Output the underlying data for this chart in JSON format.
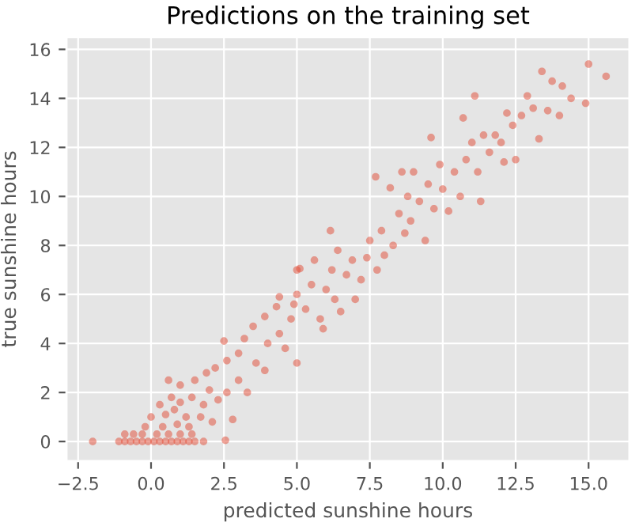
{
  "chart_data": {
    "type": "scatter",
    "title": "Predictions on the training set",
    "xlabel": "predicted sunshine hours",
    "ylabel": "true sunshine hours",
    "series": [
      {
        "color": "#e24a33",
        "x": [
          -2.0,
          -1.1,
          -0.9,
          -0.7,
          -0.5,
          -0.3,
          -0.1,
          0.1,
          0.3,
          0.5,
          0.7,
          0.9,
          1.1,
          1.3,
          1.5,
          1.8,
          2.55,
          -0.9,
          -0.6,
          -0.3,
          0.2,
          0.6,
          1.0,
          1.4,
          -0.2,
          0.4,
          0.9,
          1.3,
          0.0,
          0.5,
          0.8,
          1.2,
          1.7,
          2.1,
          2.8,
          0.3,
          0.7,
          1.0,
          1.4,
          1.8,
          1.0,
          1.5,
          2.0,
          2.3,
          2.6,
          0.6,
          1.9,
          2.2,
          2.6,
          3.0,
          3.3,
          3.0,
          2.5,
          3.2,
          3.6,
          3.9,
          4.0,
          3.5,
          3.9,
          4.4,
          4.6,
          4.3,
          4.8,
          5.0,
          5.0,
          4.9,
          5.3,
          5.5,
          5.8,
          5.9,
          5.0,
          6.0,
          6.2,
          6.15,
          6.5,
          6.3,
          6.7,
          6.9,
          7.0,
          7.2,
          7.4,
          7.5,
          7.75,
          7.7,
          7.9,
          8.0,
          8.2,
          8.3,
          8.5,
          8.7,
          8.8,
          8.9,
          9.0,
          9.2,
          9.4,
          9.5,
          9.7,
          9.9,
          10.0,
          10.2,
          10.4,
          10.6,
          10.7,
          10.8,
          11.0,
          11.1,
          11.2,
          11.3,
          11.4,
          11.6,
          11.8,
          12.0,
          12.1,
          12.2,
          12.4,
          12.7,
          12.9,
          13.1,
          13.3,
          13.4,
          13.75,
          13.6,
          14.1,
          14.0,
          14.4,
          14.9,
          15.0,
          15.6,
          12.5,
          9.6,
          8.6,
          6.4,
          5.6,
          4.4,
          5.1
        ],
        "values": [
          0,
          0,
          0,
          0,
          0,
          0,
          0,
          0,
          0,
          0,
          0,
          0,
          0,
          0,
          0,
          0,
          0.05,
          0.3,
          0.3,
          0.3,
          0.3,
          0.3,
          0.3,
          0.3,
          0.6,
          0.6,
          0.7,
          0.6,
          1.0,
          1.1,
          1.3,
          1.0,
          1.0,
          0.8,
          0.9,
          1.5,
          1.8,
          1.6,
          1.8,
          1.5,
          2.3,
          2.5,
          2.1,
          1.7,
          2.0,
          2.5,
          2.8,
          3.0,
          3.3,
          2.5,
          2.0,
          3.6,
          4.1,
          4.2,
          3.2,
          2.9,
          4.0,
          4.7,
          5.1,
          4.4,
          3.8,
          5.5,
          5.0,
          6.0,
          7.0,
          5.6,
          5.4,
          6.4,
          5.0,
          4.6,
          3.2,
          6.2,
          7.0,
          8.6,
          5.3,
          5.8,
          6.8,
          7.4,
          5.8,
          6.6,
          7.5,
          8.2,
          7.0,
          10.8,
          8.6,
          7.6,
          10.35,
          8.0,
          9.3,
          8.5,
          10.0,
          9.0,
          11.0,
          9.8,
          8.2,
          10.5,
          9.5,
          11.3,
          10.3,
          9.4,
          11.0,
          10.0,
          13.2,
          11.5,
          12.2,
          14.1,
          11.0,
          9.8,
          12.5,
          11.8,
          12.5,
          12.2,
          11.4,
          13.4,
          12.9,
          13.3,
          14.1,
          13.6,
          12.35,
          15.1,
          14.7,
          13.5,
          14.5,
          13.3,
          14.0,
          13.8,
          15.4,
          14.9,
          11.5,
          12.4,
          11.0,
          7.8,
          7.4,
          5.9,
          7.05
        ]
      }
    ],
    "marker": "circle",
    "grid": true,
    "xlim": [
      -2.9,
      16.4
    ],
    "ylim": [
      -0.8,
      16.5
    ],
    "xticks": [
      {
        "value": -2.5,
        "label": "−2.5"
      },
      {
        "value": 0,
        "label": "0.0"
      },
      {
        "value": 2.5,
        "label": "2.5"
      },
      {
        "value": 5,
        "label": "5.0"
      },
      {
        "value": 7.5,
        "label": "7.5"
      },
      {
        "value": 10,
        "label": "10.0"
      },
      {
        "value": 12.5,
        "label": "12.5"
      },
      {
        "value": 15,
        "label": "15.0"
      }
    ],
    "yticks": [
      0,
      2,
      4,
      6,
      8,
      10,
      12,
      14,
      16
    ]
  }
}
